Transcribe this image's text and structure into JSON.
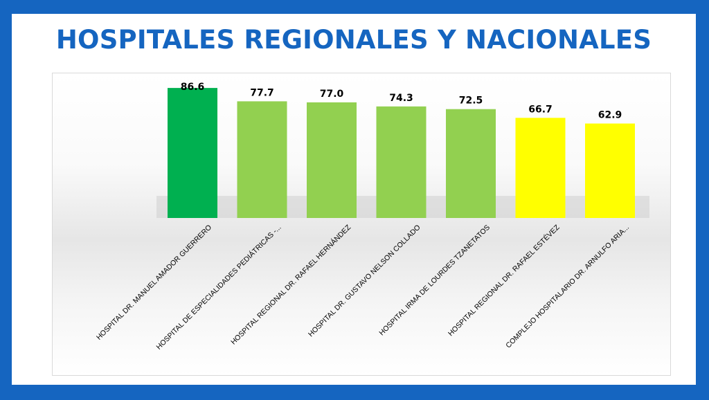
{
  "title": "HOSPITALES REGIONALES Y NACIONALES",
  "colors": {
    "frame": "#1565c0",
    "title": "#1565c0",
    "dark_green": "#00b050",
    "light_green": "#92d050",
    "yellow": "#ffff00"
  },
  "chart_data": {
    "type": "bar",
    "title": "HOSPITALES REGIONALES Y NACIONALES",
    "categories": [
      "HOSPITAL DR. MANUEL AMADOR GUERRERO",
      "HOSPITAL DE ESPECIALIDADES PEDIÁTRICAS -...",
      "HOSPITAL REGIONAL DR. RAFAEL HERNÁNDEZ",
      "HOSPITAL DR. GUSTAVO NELSON COLLADO",
      "HOSPITAL IRMA DE LOURDES TZANETATOS",
      "HOSPITAL REGIONAL DR. RAFAEL ESTÉVEZ",
      "COMPLEJO HOSPITALARIO DR. ARNULFO ARIA..."
    ],
    "values": [
      86.6,
      77.7,
      77.0,
      74.3,
      72.5,
      66.7,
      62.9
    ],
    "value_labels": [
      "86.6",
      "77.7",
      "77.0",
      "74.3",
      "72.5",
      "66.7",
      "62.9"
    ],
    "bar_colors": [
      "#00b050",
      "#92d050",
      "#92d050",
      "#92d050",
      "#92d050",
      "#ffff00",
      "#ffff00"
    ],
    "ylim": [
      0,
      100
    ],
    "xlabel": "",
    "ylabel": "",
    "grid": false,
    "legend": "none"
  }
}
